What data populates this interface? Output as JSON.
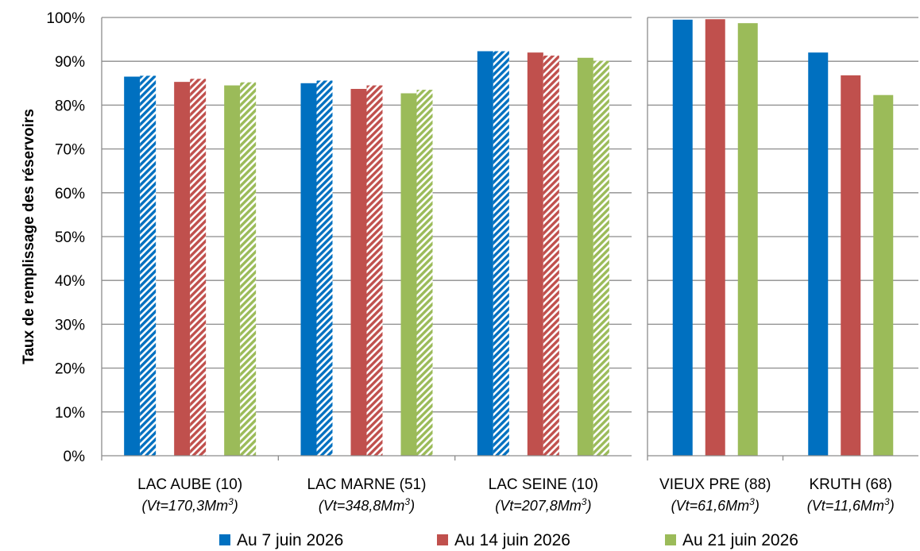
{
  "chart_data": [
    {
      "type": "bar",
      "title": "",
      "ylabel": "Taux de remplissage des réservoirs",
      "ylim": [
        0,
        100
      ],
      "ytick_step": 10,
      "ytick_suffix": "%",
      "grid": true,
      "categories": [
        {
          "name": "LAC AUBE (10)",
          "volume_prefix": "(Vt=170,3Mm",
          "volume_sup": "3",
          "volume_suffix": ")"
        },
        {
          "name": "LAC MARNE (51)",
          "volume_prefix": "(Vt=348,8Mm",
          "volume_sup": "3",
          "volume_suffix": ")"
        },
        {
          "name": "LAC SEINE (10)",
          "volume_prefix": "(Vt=207,8Mm",
          "volume_sup": "3",
          "volume_suffix": ")"
        }
      ],
      "series": [
        {
          "name": "Au 7 juin 2026",
          "color": "#0070C0",
          "values": [
            86.5,
            85.0,
            92.3
          ]
        },
        {
          "name": "Au 14 juin 2026",
          "color": "#C0504D",
          "values": [
            85.3,
            83.7,
            92.0
          ]
        },
        {
          "name": "Au 21 juin 2026",
          "color": "#9BBB59",
          "values": [
            84.5,
            82.7,
            90.8
          ]
        }
      ],
      "hatched_values": [
        [
          86.7,
          85.6,
          92.3
        ],
        [
          86.0,
          84.5,
          91.3
        ],
        [
          85.2,
          83.5,
          90.1
        ]
      ]
    },
    {
      "type": "bar",
      "title": "",
      "ylim": [
        0,
        100
      ],
      "ytick_step": 10,
      "grid": true,
      "categories": [
        {
          "name": "VIEUX PRE (88)",
          "volume_prefix": "(Vt=61,6Mm",
          "volume_sup": "3",
          "volume_suffix": ")"
        },
        {
          "name": "KRUTH (68)",
          "volume_prefix": "(Vt=11,6Mm",
          "volume_sup": "3",
          "volume_suffix": ")"
        }
      ],
      "series": [
        {
          "name": "Au 7 juin 2026",
          "color": "#0070C0",
          "values": [
            99.5,
            92.0
          ]
        },
        {
          "name": "Au 14 juin 2026",
          "color": "#C0504D",
          "values": [
            99.6,
            86.8
          ]
        },
        {
          "name": "Au 21 juin 2026",
          "color": "#9BBB59",
          "values": [
            98.7,
            82.3
          ]
        }
      ]
    }
  ],
  "legend": {
    "position": "bottom",
    "items": [
      {
        "label": "Au 7 juin 2026",
        "color": "#0070C0"
      },
      {
        "label": "Au 14 juin 2026",
        "color": "#C0504D"
      },
      {
        "label": "Au 21 juin 2026",
        "color": "#9BBB59"
      }
    ]
  }
}
